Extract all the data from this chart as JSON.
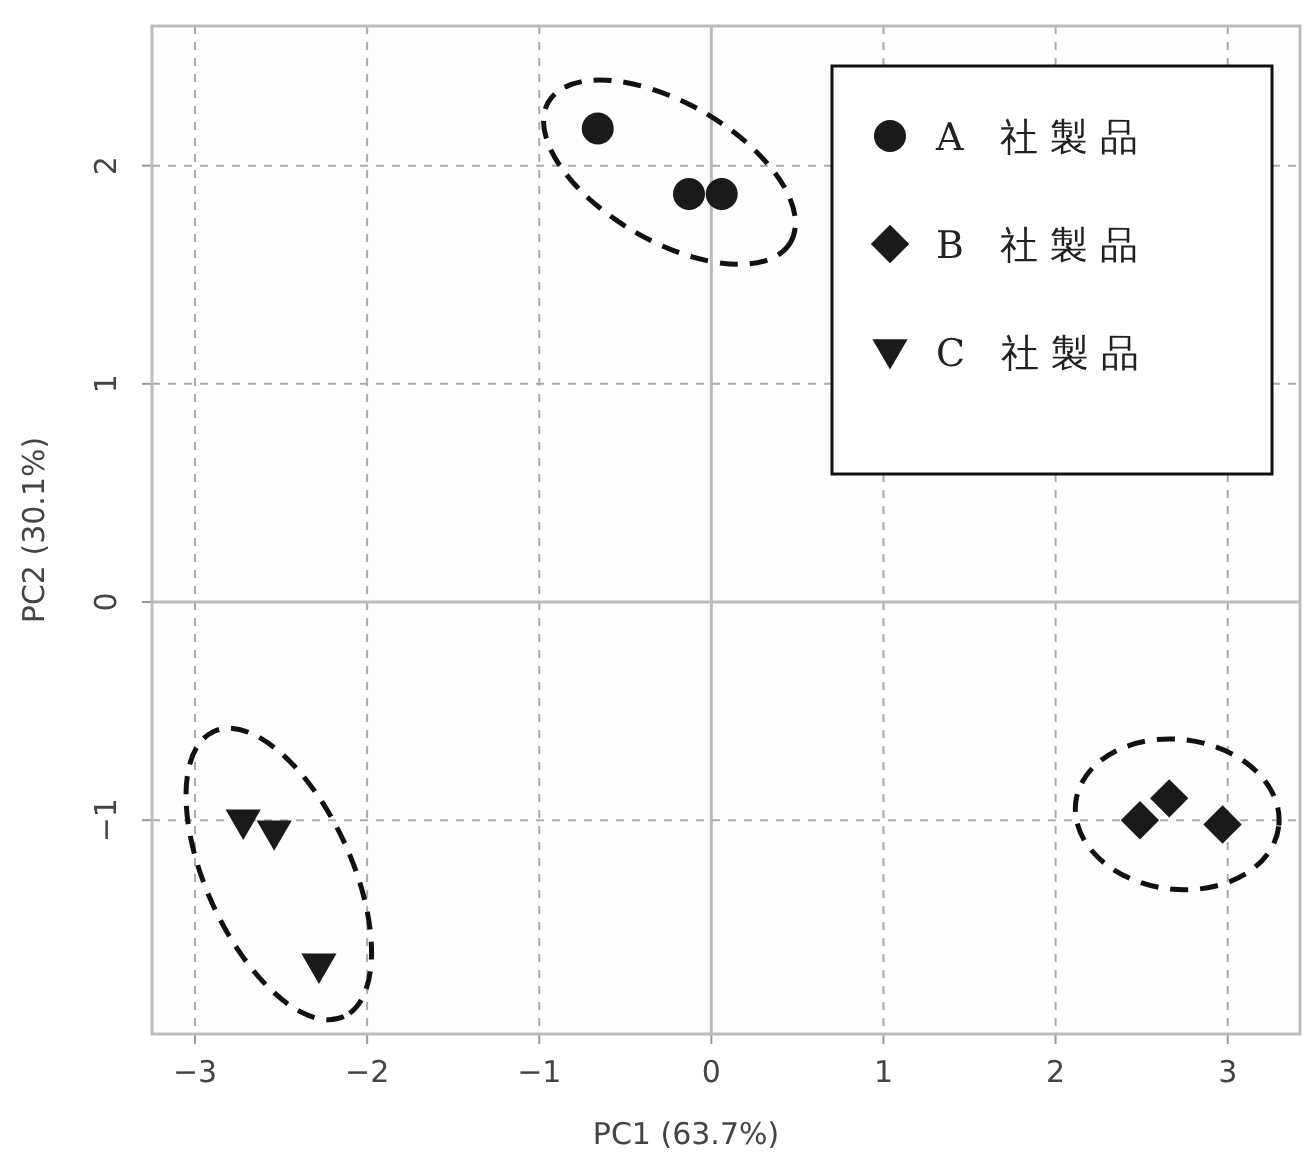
{
  "chart_data": {
    "type": "scatter",
    "xlabel": "PC1 (63.7%)",
    "ylabel": "PC2 (30.1%)",
    "xlim": [
      -3.25,
      3.42
    ],
    "ylim": [
      -1.98,
      2.64
    ],
    "xticks": [
      -3,
      -2,
      -1,
      0,
      1,
      2,
      3
    ],
    "yticks": [
      -1,
      0,
      1,
      2
    ],
    "grid": true,
    "legend": "top right",
    "series": [
      {
        "name": "A 社製品",
        "color": "#1a1a1a",
        "marker": "circle",
        "x": [
          -0.66,
          -0.13,
          0.06
        ],
        "values": [
          2.17,
          1.87,
          1.87
        ]
      },
      {
        "name": "B 社製品",
        "color": "#1a1a1a",
        "marker": "diamond",
        "x": [
          2.49,
          2.66,
          2.97
        ],
        "values": [
          -1.0,
          -0.9,
          -1.02
        ]
      },
      {
        "name": "C 社製品",
        "color": "#1a1a1a",
        "marker": "triangle",
        "x": [
          -2.72,
          -2.54,
          -2.28
        ],
        "values": [
          -1.01,
          -1.06,
          -1.67
        ]
      }
    ]
  }
}
